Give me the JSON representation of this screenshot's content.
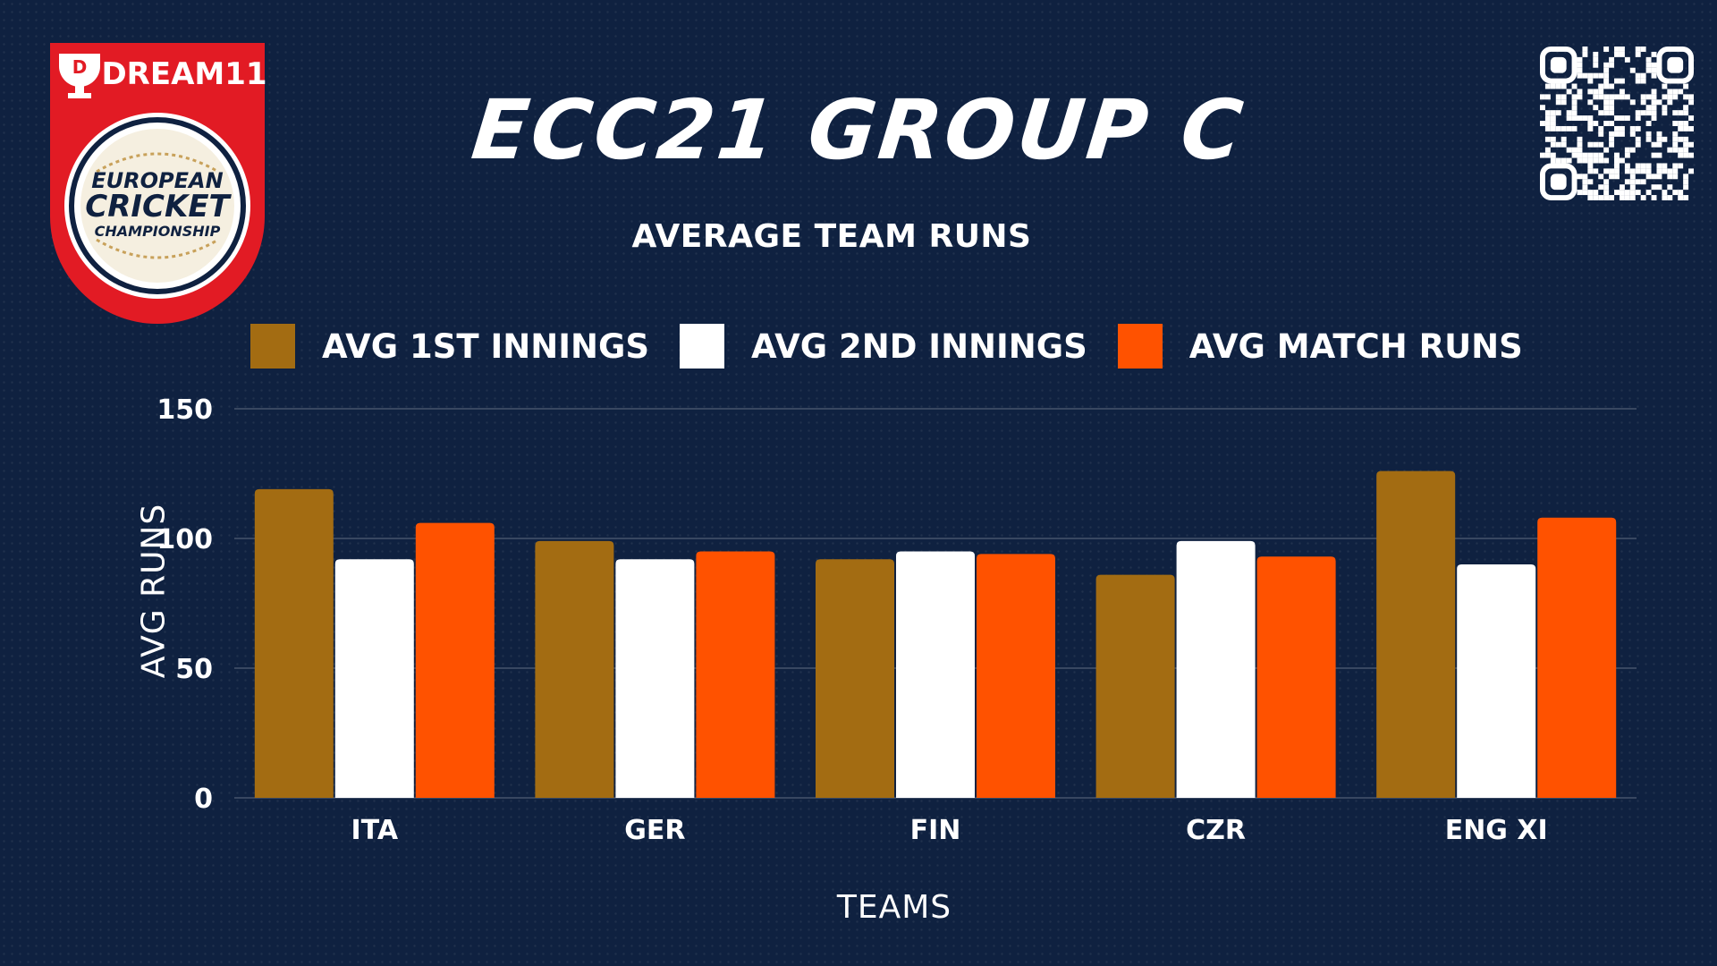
{
  "logo": {
    "brand": "DREAM11",
    "line1": "EUROPEAN",
    "line2": "CRICKET",
    "line3": "CHAMPIONSHIP"
  },
  "title": "ECC21 GROUP C",
  "subtitle": "AVERAGE TEAM RUNS",
  "legend": [
    {
      "label": "AVG 1ST INNINGS",
      "color": "#a36c12"
    },
    {
      "label": "AVG 2ND INNINGS",
      "color": "#ffffff"
    },
    {
      "label": "AVG MATCH RUNS",
      "color": "#ff5200"
    }
  ],
  "chart_data": {
    "type": "bar",
    "title": "AVERAGE TEAM RUNS",
    "xlabel": "TEAMS",
    "ylabel": "AVG RUNS",
    "ylim": [
      0,
      150
    ],
    "yticks": [
      0,
      50,
      100,
      150
    ],
    "grid": true,
    "legend_position": "top",
    "categories": [
      "ITA",
      "GER",
      "FIN",
      "CZR",
      "ENG XI"
    ],
    "series": [
      {
        "name": "AVG 1ST INNINGS",
        "color": "#a36c12",
        "values": [
          119,
          99,
          92,
          86,
          126
        ]
      },
      {
        "name": "AVG 2ND INNINGS",
        "color": "#ffffff",
        "values": [
          92,
          92,
          95,
          99,
          90
        ]
      },
      {
        "name": "AVG MATCH RUNS",
        "color": "#ff5200",
        "values": [
          106,
          95,
          94,
          93,
          108
        ]
      }
    ]
  }
}
